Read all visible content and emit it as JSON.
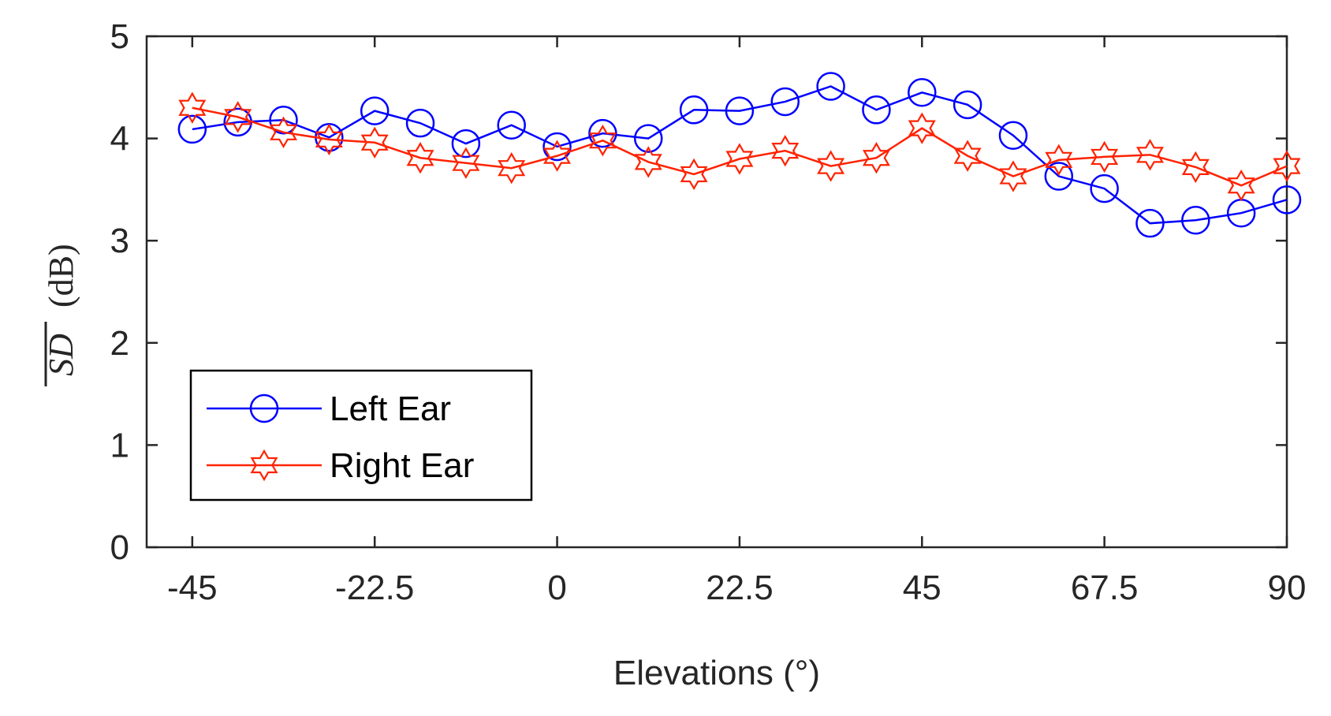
{
  "chart_data": {
    "type": "line",
    "title": "",
    "xlabel": "Elevations (°)",
    "ylabel": {
      "symbol": "SD",
      "overline": true,
      "unit": "(dB)"
    },
    "xlim": [
      -50.625,
      90
    ],
    "ylim": [
      0,
      5
    ],
    "xticks": [
      -45,
      -22.5,
      0,
      22.5,
      45,
      67.5,
      90
    ],
    "xtick_labels": [
      "-45",
      "-22.5",
      "0",
      "22.5",
      "45",
      "67.5",
      "90"
    ],
    "yticks": [
      0,
      1,
      2,
      3,
      4,
      5
    ],
    "ytick_labels": [
      "0",
      "1",
      "2",
      "3",
      "4",
      "5"
    ],
    "grid": false,
    "legend_position": "lower-left",
    "x": [
      -45,
      -39.375,
      -33.75,
      -28.125,
      -22.5,
      -16.875,
      -11.25,
      -5.625,
      0,
      5.625,
      11.25,
      16.875,
      22.5,
      28.125,
      33.75,
      39.375,
      45,
      50.625,
      56.25,
      61.875,
      67.5,
      73.125,
      78.75,
      84.375,
      90
    ],
    "series": [
      {
        "name": "Left Ear",
        "color": "#0000ff",
        "marker": "circle",
        "values": [
          4.09,
          4.16,
          4.18,
          4.01,
          4.27,
          4.15,
          3.95,
          4.13,
          3.92,
          4.05,
          4.0,
          4.28,
          4.27,
          4.36,
          4.51,
          4.28,
          4.45,
          4.33,
          4.03,
          3.63,
          3.51,
          3.17,
          3.2,
          3.27,
          3.4
        ]
      },
      {
        "name": "Right Ear",
        "color": "#ff2200",
        "marker": "hexagram",
        "values": [
          4.3,
          4.21,
          4.06,
          3.99,
          3.96,
          3.81,
          3.76,
          3.71,
          3.83,
          3.98,
          3.77,
          3.65,
          3.8,
          3.88,
          3.73,
          3.81,
          4.1,
          3.83,
          3.63,
          3.79,
          3.82,
          3.84,
          3.72,
          3.54,
          3.73
        ]
      }
    ]
  }
}
